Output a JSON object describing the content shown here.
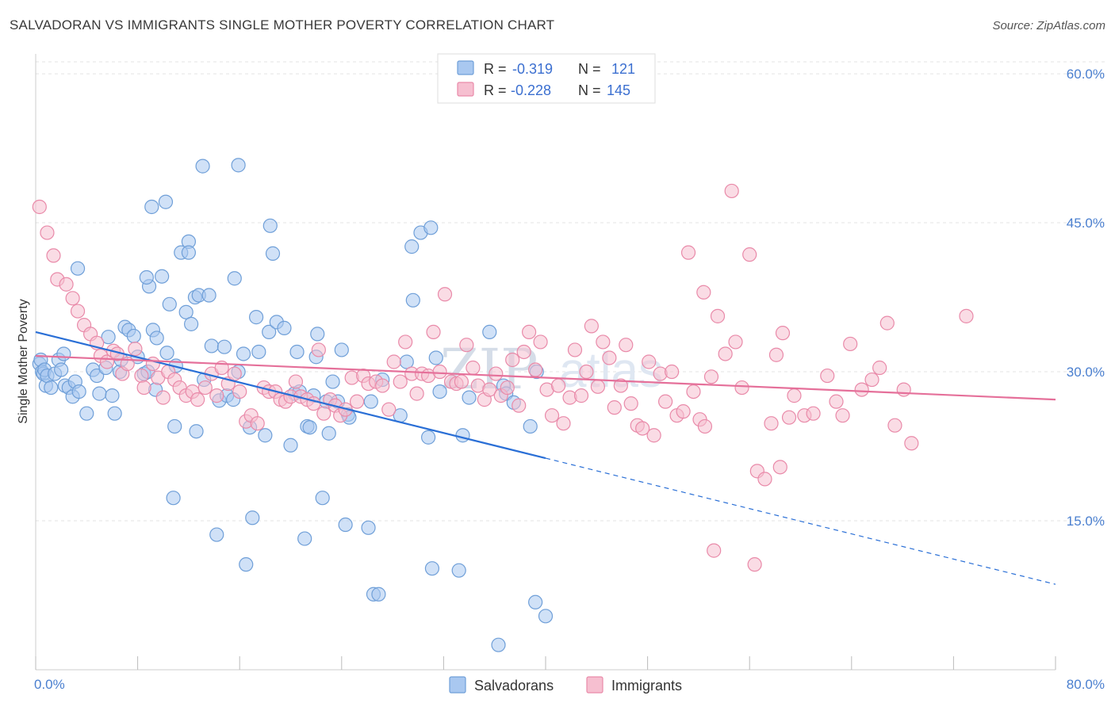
{
  "title": "SALVADORAN VS IMMIGRANTS SINGLE MOTHER POVERTY CORRELATION CHART",
  "source": "Source: ZipAtlas.com",
  "watermark": {
    "zip": "ZIP",
    "atlas": "atlas"
  },
  "colors": {
    "salvadorans_fill": "#a9c8f0",
    "salvadorans_stroke": "#6f9fd8",
    "salvadorans_line": "#2a6fd6",
    "immigrants_fill": "#f6bfd0",
    "immigrants_stroke": "#e98aa9",
    "immigrants_line": "#e5709a",
    "tick_label": "#4a7fcf",
    "grid": "#e3e3e3"
  },
  "stats_legend": [
    {
      "r_label": "R =",
      "r_value": "-0.319",
      "n_label": "N =",
      "n_value": "121"
    },
    {
      "r_label": "R =",
      "r_value": "-0.228",
      "n_label": "N =",
      "n_value": "145"
    }
  ],
  "chart_data": {
    "type": "scatter",
    "title": "SALVADORAN VS IMMIGRANTS SINGLE MOTHER POVERTY CORRELATION CHART",
    "xlabel": "",
    "ylabel": "Single Mother Poverty",
    "xlim": [
      0,
      80
    ],
    "ylim": [
      0,
      62
    ],
    "x_tick_labels": [
      "0.0%",
      "80.0%"
    ],
    "y_ticks": [
      15,
      30,
      45,
      60
    ],
    "y_tick_labels": [
      "15.0%",
      "30.0%",
      "45.0%",
      "60.0%"
    ],
    "grid": true,
    "legend_position": "bottom",
    "series": [
      {
        "name": "Salvadorans",
        "r": -0.319,
        "n": 121,
        "trend": {
          "x0": 0,
          "y0": 34.0,
          "x1": 40,
          "y1": 21.3,
          "dashed_to_x": 80,
          "dashed_to_y": 8.6
        },
        "points": [
          [
            0.3,
            30.8
          ],
          [
            0.4,
            31.2
          ],
          [
            0.5,
            30.0
          ],
          [
            0.6,
            29.8
          ],
          [
            0.7,
            30.2
          ],
          [
            0.8,
            28.6
          ],
          [
            0.9,
            29.6
          ],
          [
            1.2,
            28.4
          ],
          [
            1.5,
            29.8
          ],
          [
            1.8,
            31.2
          ],
          [
            2.0,
            30.2
          ],
          [
            2.3,
            28.6
          ],
          [
            2.6,
            28.4
          ],
          [
            2.9,
            27.5
          ],
          [
            3.1,
            29.0
          ],
          [
            3.4,
            28.0
          ],
          [
            2.2,
            31.8
          ],
          [
            4.0,
            25.8
          ],
          [
            4.5,
            30.2
          ],
          [
            4.8,
            29.6
          ],
          [
            5.0,
            27.8
          ],
          [
            5.5,
            30.4
          ],
          [
            6.0,
            27.6
          ],
          [
            6.2,
            25.8
          ],
          [
            3.3,
            40.4
          ],
          [
            5.7,
            33.5
          ],
          [
            6.6,
            30.0
          ],
          [
            7.0,
            34.5
          ],
          [
            7.3,
            34.2
          ],
          [
            7.7,
            33.6
          ],
          [
            8.0,
            31.5
          ],
          [
            8.5,
            29.8
          ],
          [
            8.9,
            38.6
          ],
          [
            8.7,
            39.5
          ],
          [
            9.2,
            34.2
          ],
          [
            9.5,
            33.4
          ],
          [
            9.9,
            39.6
          ],
          [
            10.3,
            31.9
          ],
          [
            10.5,
            36.8
          ],
          [
            10.8,
            17.3
          ],
          [
            10.9,
            24.5
          ],
          [
            11.0,
            30.6
          ],
          [
            11.4,
            42.0
          ],
          [
            11.8,
            36.0
          ],
          [
            12.0,
            43.1
          ],
          [
            12.2,
            34.8
          ],
          [
            12.5,
            37.5
          ],
          [
            12.6,
            24.0
          ],
          [
            12.8,
            37.7
          ],
          [
            13.2,
            29.2
          ],
          [
            13.6,
            37.7
          ],
          [
            13.8,
            32.6
          ],
          [
            14.2,
            13.6
          ],
          [
            14.4,
            27.1
          ],
          [
            14.8,
            32.5
          ],
          [
            15.0,
            27.6
          ],
          [
            15.5,
            27.2
          ],
          [
            15.6,
            39.4
          ],
          [
            15.9,
            30.0
          ],
          [
            16.3,
            31.8
          ],
          [
            16.8,
            24.4
          ],
          [
            16.5,
            10.6
          ],
          [
            17.0,
            15.3
          ],
          [
            17.5,
            32.0
          ],
          [
            18.0,
            23.6
          ],
          [
            18.3,
            34.0
          ],
          [
            18.4,
            44.7
          ],
          [
            18.6,
            41.9
          ],
          [
            18.9,
            35.0
          ],
          [
            19.5,
            34.4
          ],
          [
            20.0,
            22.6
          ],
          [
            20.3,
            27.8
          ],
          [
            20.5,
            32.0
          ],
          [
            20.7,
            28.0
          ],
          [
            21.1,
            13.2
          ],
          [
            21.3,
            24.5
          ],
          [
            21.5,
            24.4
          ],
          [
            21.8,
            27.6
          ],
          [
            22.1,
            33.8
          ],
          [
            22.5,
            17.3
          ],
          [
            22.8,
            27.0
          ],
          [
            23.0,
            23.8
          ],
          [
            23.3,
            29.0
          ],
          [
            23.7,
            27.0
          ],
          [
            24.0,
            32.2
          ],
          [
            24.3,
            14.6
          ],
          [
            24.5,
            25.7
          ],
          [
            24.6,
            25.4
          ],
          [
            26.1,
            14.3
          ],
          [
            26.5,
            7.6
          ],
          [
            26.9,
            7.6
          ],
          [
            27.2,
            29.2
          ],
          [
            28.6,
            25.6
          ],
          [
            29.1,
            31.0
          ],
          [
            29.5,
            42.6
          ],
          [
            29.6,
            37.2
          ],
          [
            30.2,
            44.0
          ],
          [
            30.8,
            23.4
          ],
          [
            31.0,
            44.5
          ],
          [
            31.4,
            31.4
          ],
          [
            31.1,
            10.2
          ],
          [
            31.7,
            28.0
          ],
          [
            33.2,
            10.0
          ],
          [
            33.5,
            23.6
          ],
          [
            34.0,
            27.4
          ],
          [
            35.6,
            34.0
          ],
          [
            36.3,
            2.5
          ],
          [
            36.7,
            28.6
          ],
          [
            36.9,
            27.8
          ],
          [
            37.5,
            26.9
          ],
          [
            38.8,
            24.5
          ],
          [
            39.2,
            6.8
          ],
          [
            39.3,
            30.0
          ],
          [
            40.0,
            5.4
          ],
          [
            13.1,
            50.7
          ],
          [
            15.9,
            50.8
          ],
          [
            9.1,
            46.6
          ],
          [
            10.2,
            47.1
          ],
          [
            12.0,
            42.0
          ],
          [
            6.7,
            31.2
          ],
          [
            8.8,
            30.0
          ],
          [
            9.4,
            28.2
          ],
          [
            26.3,
            27.0
          ],
          [
            22.0,
            31.5
          ],
          [
            17.3,
            35.5
          ]
        ]
      },
      {
        "name": "Immigrants",
        "r": -0.228,
        "n": 145,
        "trend": {
          "x0": 0,
          "y0": 31.6,
          "x1": 80,
          "y1": 27.2
        },
        "points": [
          [
            0.3,
            46.6
          ],
          [
            0.9,
            44.0
          ],
          [
            1.4,
            41.7
          ],
          [
            1.7,
            39.3
          ],
          [
            2.4,
            38.8
          ],
          [
            2.9,
            37.4
          ],
          [
            3.3,
            36.1
          ],
          [
            3.8,
            34.7
          ],
          [
            4.3,
            33.8
          ],
          [
            4.8,
            32.9
          ],
          [
            5.1,
            31.6
          ],
          [
            5.6,
            31.0
          ],
          [
            6.1,
            32.1
          ],
          [
            6.4,
            31.8
          ],
          [
            6.8,
            29.8
          ],
          [
            7.2,
            30.8
          ],
          [
            7.8,
            32.3
          ],
          [
            8.3,
            29.6
          ],
          [
            8.5,
            28.4
          ],
          [
            9.2,
            30.8
          ],
          [
            9.6,
            29.4
          ],
          [
            10.0,
            27.4
          ],
          [
            10.4,
            30.0
          ],
          [
            10.9,
            29.2
          ],
          [
            11.3,
            28.4
          ],
          [
            11.8,
            27.6
          ],
          [
            12.3,
            28.0
          ],
          [
            12.7,
            27.2
          ],
          [
            13.3,
            28.4
          ],
          [
            13.8,
            29.8
          ],
          [
            14.2,
            27.6
          ],
          [
            14.6,
            30.4
          ],
          [
            15.1,
            28.8
          ],
          [
            15.6,
            29.8
          ],
          [
            16.0,
            28.0
          ],
          [
            16.5,
            25.0
          ],
          [
            16.9,
            25.6
          ],
          [
            17.4,
            24.8
          ],
          [
            17.9,
            28.4
          ],
          [
            18.3,
            28.0
          ],
          [
            18.8,
            28.0
          ],
          [
            19.2,
            27.2
          ],
          [
            19.6,
            27.0
          ],
          [
            20.0,
            27.5
          ],
          [
            20.4,
            29.0
          ],
          [
            20.8,
            27.5
          ],
          [
            21.3,
            27.2
          ],
          [
            21.8,
            26.8
          ],
          [
            22.2,
            32.2
          ],
          [
            22.6,
            25.8
          ],
          [
            23.1,
            27.2
          ],
          [
            23.5,
            26.6
          ],
          [
            23.9,
            25.6
          ],
          [
            24.3,
            26.2
          ],
          [
            24.8,
            29.4
          ],
          [
            25.2,
            27.0
          ],
          [
            25.7,
            29.6
          ],
          [
            26.1,
            28.8
          ],
          [
            26.7,
            29.0
          ],
          [
            27.2,
            28.6
          ],
          [
            27.7,
            26.2
          ],
          [
            28.1,
            31.0
          ],
          [
            28.6,
            29.0
          ],
          [
            29.0,
            33.0
          ],
          [
            29.5,
            29.8
          ],
          [
            29.9,
            27.8
          ],
          [
            30.3,
            29.8
          ],
          [
            30.8,
            29.6
          ],
          [
            31.2,
            34.0
          ],
          [
            31.7,
            30.0
          ],
          [
            32.1,
            37.8
          ],
          [
            32.6,
            29.0
          ],
          [
            33.0,
            28.8
          ],
          [
            33.4,
            29.0
          ],
          [
            33.8,
            32.7
          ],
          [
            34.3,
            30.4
          ],
          [
            34.7,
            28.6
          ],
          [
            35.2,
            27.2
          ],
          [
            35.6,
            28.2
          ],
          [
            36.1,
            29.8
          ],
          [
            36.5,
            27.6
          ],
          [
            37.0,
            28.4
          ],
          [
            37.4,
            31.2
          ],
          [
            37.9,
            26.6
          ],
          [
            38.3,
            32.0
          ],
          [
            38.7,
            34.0
          ],
          [
            39.2,
            30.2
          ],
          [
            39.6,
            33.0
          ],
          [
            40.1,
            28.2
          ],
          [
            40.5,
            25.6
          ],
          [
            41.0,
            28.6
          ],
          [
            41.4,
            24.8
          ],
          [
            41.9,
            27.4
          ],
          [
            42.3,
            32.2
          ],
          [
            42.8,
            27.6
          ],
          [
            43.2,
            30.0
          ],
          [
            43.6,
            34.6
          ],
          [
            44.1,
            28.5
          ],
          [
            44.5,
            33.0
          ],
          [
            45.0,
            31.4
          ],
          [
            45.4,
            26.4
          ],
          [
            45.9,
            28.6
          ],
          [
            46.3,
            32.7
          ],
          [
            46.7,
            26.8
          ],
          [
            47.2,
            24.6
          ],
          [
            47.6,
            24.3
          ],
          [
            48.1,
            31.0
          ],
          [
            48.5,
            23.6
          ],
          [
            49.0,
            29.8
          ],
          [
            49.4,
            27.0
          ],
          [
            49.9,
            30.0
          ],
          [
            50.3,
            25.6
          ],
          [
            50.8,
            26.0
          ],
          [
            51.2,
            42.0
          ],
          [
            51.6,
            28.0
          ],
          [
            52.1,
            25.2
          ],
          [
            52.5,
            24.5
          ],
          [
            53.0,
            29.5
          ],
          [
            53.5,
            35.6
          ],
          [
            54.1,
            31.8
          ],
          [
            54.6,
            48.2
          ],
          [
            54.9,
            33.0
          ],
          [
            55.4,
            28.4
          ],
          [
            56.0,
            41.8
          ],
          [
            56.6,
            20.0
          ],
          [
            57.2,
            19.2
          ],
          [
            57.7,
            24.8
          ],
          [
            58.1,
            31.7
          ],
          [
            58.6,
            33.9
          ],
          [
            59.1,
            25.4
          ],
          [
            59.5,
            27.6
          ],
          [
            60.3,
            25.6
          ],
          [
            61.0,
            25.8
          ],
          [
            62.1,
            29.6
          ],
          [
            62.8,
            27.0
          ],
          [
            63.3,
            25.6
          ],
          [
            63.9,
            32.8
          ],
          [
            64.8,
            28.2
          ],
          [
            65.6,
            29.2
          ],
          [
            66.2,
            30.4
          ],
          [
            66.8,
            34.9
          ],
          [
            67.4,
            24.6
          ],
          [
            68.1,
            28.2
          ],
          [
            68.7,
            22.8
          ],
          [
            73.0,
            35.6
          ],
          [
            52.4,
            38.0
          ],
          [
            58.4,
            20.4
          ],
          [
            53.2,
            12.0
          ],
          [
            56.4,
            10.6
          ]
        ]
      }
    ]
  },
  "bottom_legend": [
    {
      "label": "Salvadorans"
    },
    {
      "label": "Immigrants"
    }
  ]
}
